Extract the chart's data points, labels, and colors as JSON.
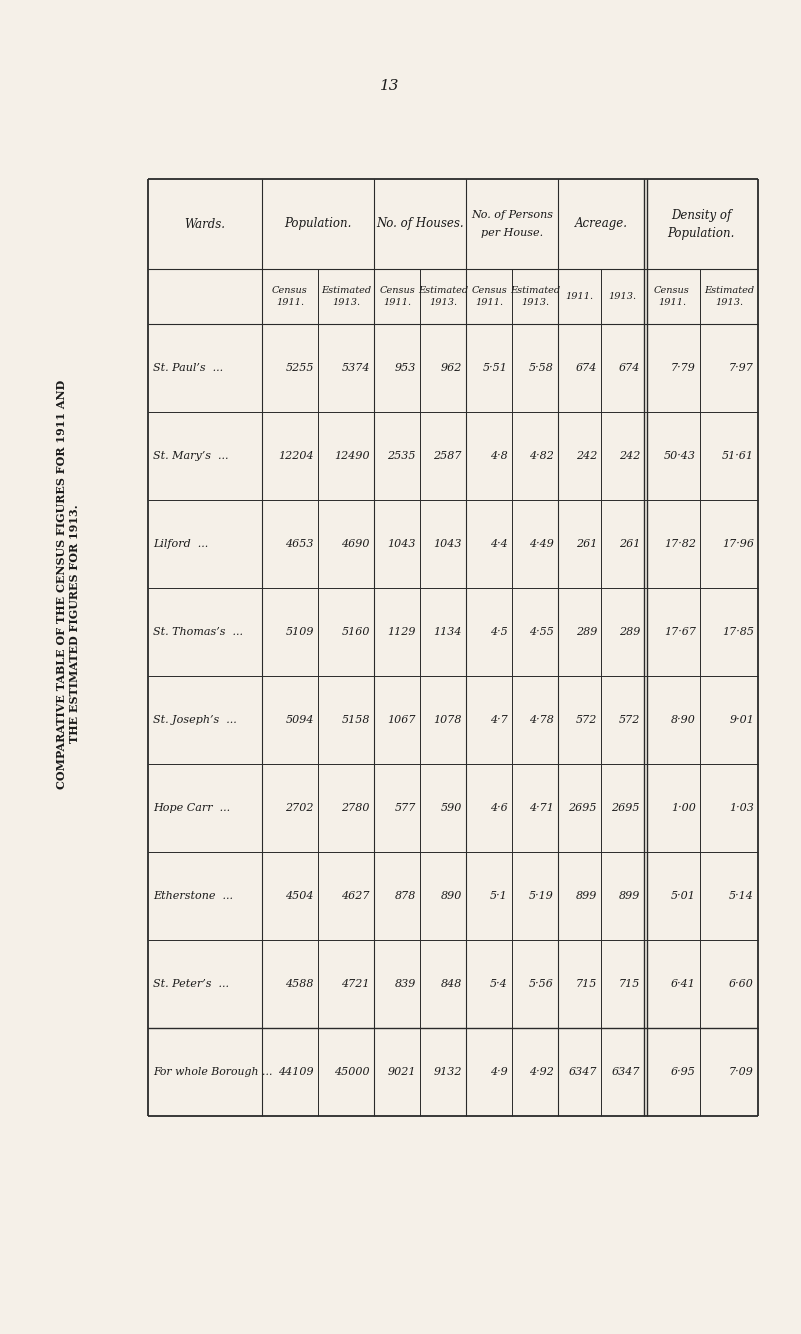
{
  "title_line1": "COMPARATIVE TABLE OF THE CENSUS FIGURES FOR 1911 AND",
  "title_line2": "THE ESTIMATED FIGURES FOR 1913.",
  "page_number": "13",
  "bg_color": "#f5f0e8",
  "text_color": "#1a1a1a",
  "wards": [
    "St. Paul’s",
    "St. Mary’s",
    "Lilford",
    "St. Thomas’s",
    "St. Joseph’s",
    "Hope Carr",
    "Etherstone",
    "St. Peter’s",
    "For whole Borough"
  ],
  "pop_census": [
    "5255",
    "12204",
    "4653",
    "5109",
    "5094",
    "2702",
    "4504",
    "4588",
    "44109"
  ],
  "pop_estimated": [
    "5374",
    "12490",
    "4690",
    "5160",
    "5158",
    "2780",
    "4627",
    "4721",
    "45000"
  ],
  "houses_census": [
    "953",
    "2535",
    "1043",
    "1129",
    "1067",
    "577",
    "878",
    "839",
    "9021"
  ],
  "houses_estimated": [
    "962",
    "2587",
    "1043",
    "1134",
    "1078",
    "590",
    "890",
    "848",
    "9132"
  ],
  "persons_census": [
    "5·51",
    "4·8",
    "4·4",
    "4·5",
    "4·7",
    "4·6",
    "5·1",
    "5·4",
    "4·9"
  ],
  "persons_estimated": [
    "5·58",
    "4·82",
    "4·49",
    "4·55",
    "4·78",
    "4·71",
    "5·19",
    "5·56",
    "4·92"
  ],
  "acreage_1911": [
    "674",
    "242",
    "261",
    "289",
    "572",
    "2695",
    "899",
    "715",
    "6347"
  ],
  "acreage_1913": [
    "674",
    "242",
    "261",
    "289",
    "572",
    "2695",
    "899",
    "715",
    "6347"
  ],
  "density_census": [
    "7·79",
    "50·43",
    "17·82",
    "17·67",
    "8·90",
    "1·00",
    "5·01",
    "6·41",
    "6·95"
  ],
  "density_estimated": [
    "7·97",
    "51·61",
    "17·96",
    "17·85",
    "9·01",
    "1·03",
    "5·14",
    "6·60",
    "7·09"
  ]
}
